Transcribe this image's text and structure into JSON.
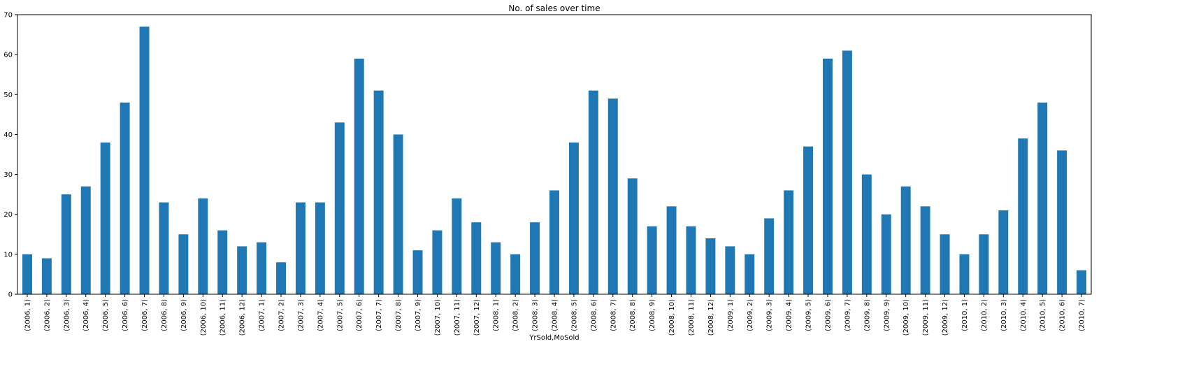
{
  "chart_data": {
    "type": "bar",
    "title": "No. of sales over time",
    "xlabel": "YrSold,MoSold",
    "ylabel": "",
    "ylim": [
      0,
      70
    ],
    "yticks": [
      0,
      10,
      20,
      30,
      40,
      50,
      60,
      70
    ],
    "grid": false,
    "legend": "none",
    "bar_color": "#1f77b4",
    "categories": [
      "(2006, 1)",
      "(2006, 2)",
      "(2006, 3)",
      "(2006, 4)",
      "(2006, 5)",
      "(2006, 6)",
      "(2006, 7)",
      "(2006, 8)",
      "(2006, 9)",
      "(2006, 10)",
      "(2006, 11)",
      "(2006, 12)",
      "(2007, 1)",
      "(2007, 2)",
      "(2007, 3)",
      "(2007, 4)",
      "(2007, 5)",
      "(2007, 6)",
      "(2007, 7)",
      "(2007, 8)",
      "(2007, 9)",
      "(2007, 10)",
      "(2007, 11)",
      "(2007, 12)",
      "(2008, 1)",
      "(2008, 2)",
      "(2008, 3)",
      "(2008, 4)",
      "(2008, 5)",
      "(2008, 6)",
      "(2008, 7)",
      "(2008, 8)",
      "(2008, 9)",
      "(2008, 10)",
      "(2008, 11)",
      "(2008, 12)",
      "(2009, 1)",
      "(2009, 2)",
      "(2009, 3)",
      "(2009, 4)",
      "(2009, 5)",
      "(2009, 6)",
      "(2009, 7)",
      "(2009, 8)",
      "(2009, 9)",
      "(2009, 10)",
      "(2009, 11)",
      "(2009, 12)",
      "(2010, 1)",
      "(2010, 2)",
      "(2010, 3)",
      "(2010, 4)",
      "(2010, 5)",
      "(2010, 6)",
      "(2010, 7)"
    ],
    "values": [
      10,
      9,
      25,
      27,
      38,
      48,
      67,
      23,
      15,
      24,
      16,
      12,
      13,
      8,
      23,
      23,
      43,
      59,
      51,
      40,
      11,
      16,
      24,
      18,
      13,
      10,
      18,
      26,
      38,
      51,
      49,
      29,
      17,
      22,
      17,
      14,
      12,
      10,
      19,
      26,
      37,
      59,
      61,
      30,
      20,
      27,
      22,
      15,
      10,
      15,
      21,
      39,
      48,
      36,
      6
    ]
  }
}
